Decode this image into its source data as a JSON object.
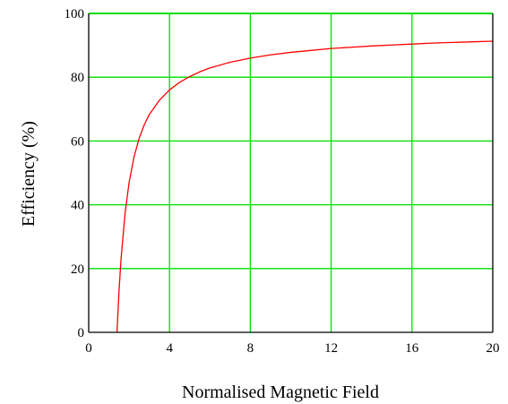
{
  "chart_data": {
    "type": "line",
    "title": "",
    "xlabel": "Normalised Magnetic Field",
    "ylabel": "Efficiency (%)",
    "xlim": [
      0,
      20
    ],
    "ylim": [
      0,
      100
    ],
    "x_ticks": [
      0,
      4,
      8,
      12,
      16,
      20
    ],
    "y_ticks": [
      0,
      20,
      40,
      60,
      80,
      100
    ],
    "x_tick_labels": [
      "0",
      "4",
      "8",
      "12",
      "16",
      "20"
    ],
    "y_tick_labels": [
      "0",
      "20",
      "40",
      "60",
      "80",
      "100"
    ],
    "grid": true,
    "legend": "none",
    "colors": {
      "grid": "#00dd00",
      "series": "#ff0000",
      "axes": "#000000"
    },
    "series": [
      {
        "x": [
          1.4,
          1.5,
          1.6,
          1.8,
          2.0,
          2.25,
          2.5,
          2.75,
          3.0,
          3.5,
          4.0,
          4.5,
          5.0,
          5.5,
          6.0,
          7.0,
          8.0,
          9.0,
          10.0,
          11.0,
          12.0,
          13.0,
          14.0,
          15.0,
          16.0,
          17.0,
          18.0,
          19.0,
          20.0
        ],
        "y": [
          0.0,
          12.9,
          22.9,
          37.3,
          47.0,
          55.2,
          60.9,
          65.1,
          68.3,
          72.8,
          76.0,
          78.4,
          80.2,
          81.7,
          82.9,
          84.7,
          86.0,
          87.0,
          87.8,
          88.4,
          89.0,
          89.4,
          89.8,
          90.1,
          90.4,
          90.7,
          90.9,
          91.1,
          91.3
        ]
      }
    ]
  }
}
